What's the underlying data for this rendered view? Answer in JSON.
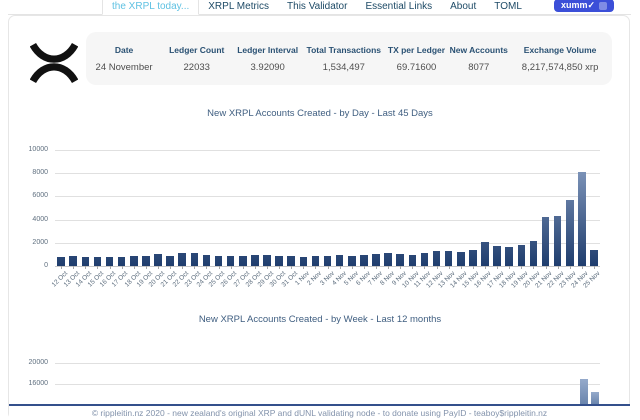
{
  "nav": {
    "tabs": [
      {
        "label": "the XRPL today...",
        "active": true
      },
      {
        "label": "XRPL Metrics",
        "active": false
      },
      {
        "label": "This Validator",
        "active": false
      },
      {
        "label": "Essential Links",
        "active": false
      },
      {
        "label": "About",
        "active": false
      },
      {
        "label": "TOML",
        "active": false
      }
    ],
    "xumm_button": {
      "label": "xumm",
      "check": "✓",
      "icon": "qr-icon"
    },
    "colors": {
      "active_tab": "#5ec1e2",
      "tab": "#1d4a66",
      "xumm_bg": "#3b4fd8"
    }
  },
  "stats": {
    "columns": [
      {
        "label": "Date",
        "value": "24 November"
      },
      {
        "label": "Ledger Count",
        "value": "22033"
      },
      {
        "label": "Ledger Interval",
        "value": "3.92090"
      },
      {
        "label": "Total Transactions",
        "value": "1,534,497"
      },
      {
        "label": "TX per Ledger",
        "value": "69.71600"
      },
      {
        "label": "New Accounts",
        "value": "8077"
      },
      {
        "label": "Exchange Volume",
        "value": "8,217,574,850 xrp"
      }
    ]
  },
  "chart_data": [
    {
      "type": "bar",
      "title": "New XRPL Accounts Created - by Day - Last 45 Days",
      "categories": [
        "12 Oct",
        "13 Oct",
        "14 Oct",
        "15 Oct",
        "16 Oct",
        "17 Oct",
        "18 Oct",
        "19 Oct",
        "20 Oct",
        "21 Oct",
        "22 Oct",
        "23 Oct",
        "24 Oct",
        "25 Oct",
        "26 Oct",
        "27 Oct",
        "28 Oct",
        "29 Oct",
        "30 Oct",
        "31 Oct",
        "1 Nov",
        "2 Nov",
        "3 Nov",
        "4 Nov",
        "5 Nov",
        "6 Nov",
        "7 Nov",
        "8 Nov",
        "9 Nov",
        "10 Nov",
        "11 Nov",
        "12 Nov",
        "13 Nov",
        "14 Nov",
        "15 Nov",
        "16 Nov",
        "17 Nov",
        "18 Nov",
        "19 Nov",
        "20 Nov",
        "21 Nov",
        "22 Nov",
        "23 Nov",
        "24 Nov",
        "25 Nov"
      ],
      "values": [
        800,
        820,
        760,
        800,
        770,
        800,
        860,
        900,
        1050,
        830,
        1120,
        1150,
        960,
        830,
        870,
        900,
        950,
        930,
        830,
        870,
        810,
        860,
        900,
        950,
        890,
        930,
        1000,
        1080,
        1010,
        990,
        1160,
        1300,
        1280,
        1230,
        1380,
        2100,
        1700,
        1600,
        1850,
        2150,
        4200,
        4350,
        5700,
        8077,
        1400
      ],
      "xlabel": "",
      "ylabel": "",
      "ylim": [
        0,
        10000
      ],
      "yticks": [
        0,
        2000,
        4000,
        6000,
        8000,
        10000
      ],
      "grid": true,
      "legend": false,
      "bar_gradient": [
        "#90a5c8",
        "#1f3d6d"
      ]
    },
    {
      "type": "bar",
      "title": "New XRPL Accounts Created - by Week - Last 12 months",
      "note": "chart mostly cut off by viewport bottom; only top two gridlines and tops of the final two weekly bars are visible",
      "visible_yticks": [
        20000,
        16000
      ],
      "weeks_total": 52,
      "visible_bars": [
        {
          "index": 50,
          "value": 17000
        },
        {
          "index": 51,
          "value": 14500
        }
      ],
      "grid": true,
      "legend": false,
      "bar_color": "#8ea3c2"
    }
  ],
  "footer": {
    "text": "© rippleitin.nz 2020 - new zealand's original XRP and dUNL validating node - to donate using PayID - teaboy$rippleitin.nz"
  },
  "colors": {
    "grid": "#e0e0e0",
    "footer_border": "#34508c",
    "stats_bg": "#f6f6f6",
    "title_text": "#3f5e80"
  }
}
